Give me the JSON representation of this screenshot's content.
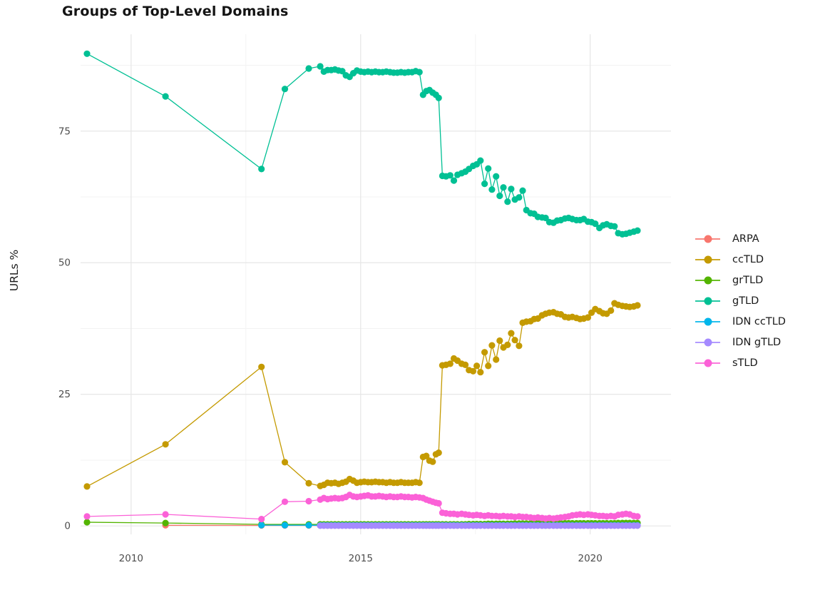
{
  "page": {
    "background": "#ffffff"
  },
  "chart_data": {
    "type": "line",
    "title": "Groups of Top-Level Domains",
    "ylabel": "URLs %",
    "xlabel": "",
    "x_ticks": [
      2010,
      2015,
      2020
    ],
    "y_ticks": [
      0,
      25,
      50,
      75
    ],
    "xlim": [
      2008.9,
      2021.76
    ],
    "ylim": [
      -1.6,
      93.4
    ],
    "grid": true,
    "legend_position": "right",
    "colors": {
      "major_grid": "#e6e6e6",
      "minor_grid": "#f3f3f3",
      "tick_label": "#4d4d4d",
      "title_text": "#141414"
    },
    "x_dense": [
      2014.12,
      2014.2,
      2014.28,
      2014.36,
      2014.44,
      2014.52,
      2014.6,
      2014.68,
      2014.76,
      2014.84,
      2014.92,
      2015.0,
      2015.08,
      2015.16,
      2015.24,
      2015.32,
      2015.4,
      2015.48,
      2015.56,
      2015.64,
      2015.72,
      2015.8,
      2015.88,
      2015.96,
      2016.04,
      2016.12,
      2016.2,
      2016.28,
      2016.36,
      2016.43,
      2016.5,
      2016.57,
      2016.64,
      2016.7,
      2016.78,
      2016.86,
      2016.95,
      2017.03,
      2017.11,
      2017.2,
      2017.28,
      2017.36,
      2017.45,
      2017.53,
      2017.61,
      2017.7,
      2017.78,
      2017.86,
      2017.95,
      2018.03,
      2018.11,
      2018.2,
      2018.28,
      2018.36,
      2018.45,
      2018.53,
      2018.61,
      2018.7,
      2018.78,
      2018.86,
      2018.95,
      2019.03,
      2019.11,
      2019.2,
      2019.28,
      2019.36,
      2019.45,
      2019.53,
      2019.61,
      2019.7,
      2019.78,
      2019.86,
      2019.95,
      2020.03,
      2020.11,
      2020.2,
      2020.28,
      2020.36,
      2020.45,
      2020.53,
      2020.61,
      2020.7,
      2020.78,
      2020.86,
      2020.95,
      2021.03
    ],
    "series": [
      {
        "name": "ARPA",
        "color": "#F8766D",
        "head": [
          [
            2010.75,
            0.12
          ],
          [
            2012.84,
            0.1
          ],
          [
            2013.35,
            0.1
          ],
          [
            2013.87,
            0.1
          ]
        ],
        "dense_const": 0.08
      },
      {
        "name": "ccTLD",
        "color": "#C49A00",
        "head": [
          [
            2009.04,
            7.5
          ],
          [
            2010.75,
            15.5
          ],
          [
            2012.84,
            30.2
          ],
          [
            2013.35,
            12.1
          ],
          [
            2013.87,
            8.1
          ]
        ],
        "dense": [
          7.6,
          7.8,
          8.2,
          8.1,
          8.2,
          8.0,
          8.2,
          8.4,
          8.9,
          8.6,
          8.2,
          8.3,
          8.4,
          8.3,
          8.3,
          8.4,
          8.3,
          8.3,
          8.2,
          8.3,
          8.2,
          8.2,
          8.3,
          8.2,
          8.2,
          8.2,
          8.3,
          8.2,
          13.1,
          13.3,
          12.4,
          12.2,
          13.6,
          13.9,
          30.5,
          30.6,
          30.8,
          31.8,
          31.4,
          30.8,
          30.6,
          29.6,
          29.4,
          30.4,
          29.2,
          33.0,
          30.4,
          34.3,
          31.6,
          35.2,
          33.9,
          34.4,
          36.6,
          35.3,
          34.2,
          38.6,
          38.8,
          38.9,
          39.3,
          39.4,
          40.0,
          40.3,
          40.5,
          40.6,
          40.3,
          40.2,
          39.7,
          39.6,
          39.7,
          39.5,
          39.3,
          39.4,
          39.6,
          40.5,
          41.2,
          40.8,
          40.4,
          40.3,
          40.9,
          42.3,
          42.0,
          41.8,
          41.7,
          41.6,
          41.7,
          41.9
        ]
      },
      {
        "name": "grTLD",
        "color": "#53B400",
        "head": [
          [
            2009.04,
            0.7
          ],
          [
            2010.75,
            0.55
          ],
          [
            2012.84,
            0.3
          ],
          [
            2013.35,
            0.3
          ],
          [
            2013.87,
            0.3
          ]
        ],
        "dense": [
          0.3,
          0.3,
          0.3,
          0.3,
          0.3,
          0.3,
          0.3,
          0.3,
          0.3,
          0.3,
          0.3,
          0.3,
          0.3,
          0.3,
          0.3,
          0.3,
          0.3,
          0.3,
          0.3,
          0.3,
          0.3,
          0.3,
          0.3,
          0.3,
          0.3,
          0.3,
          0.3,
          0.3,
          0.3,
          0.3,
          0.3,
          0.3,
          0.3,
          0.3,
          0.3,
          0.3,
          0.3,
          0.3,
          0.3,
          0.3,
          0.3,
          0.35,
          0.35,
          0.35,
          0.35,
          0.35,
          0.4,
          0.4,
          0.4,
          0.4,
          0.4,
          0.4,
          0.4,
          0.45,
          0.45,
          0.45,
          0.45,
          0.45,
          0.45,
          0.5,
          0.5,
          0.5,
          0.5,
          0.5,
          0.5,
          0.5,
          0.5,
          0.5,
          0.5,
          0.5,
          0.5,
          0.5,
          0.5,
          0.5,
          0.5,
          0.5,
          0.5,
          0.5,
          0.5,
          0.5,
          0.55,
          0.55,
          0.55,
          0.55,
          0.55,
          0.55
        ]
      },
      {
        "name": "gTLD",
        "color": "#00C094",
        "head": [
          [
            2009.04,
            89.7
          ],
          [
            2010.75,
            81.6
          ],
          [
            2012.84,
            67.8
          ],
          [
            2013.35,
            83.0
          ],
          [
            2013.87,
            86.9
          ]
        ],
        "dense": [
          87.3,
          86.3,
          86.6,
          86.6,
          86.7,
          86.5,
          86.4,
          85.6,
          85.3,
          86.0,
          86.5,
          86.3,
          86.2,
          86.3,
          86.2,
          86.3,
          86.2,
          86.2,
          86.3,
          86.2,
          86.1,
          86.1,
          86.2,
          86.1,
          86.2,
          86.2,
          86.4,
          86.2,
          81.9,
          82.6,
          82.8,
          82.3,
          81.9,
          81.3,
          66.5,
          66.4,
          66.6,
          65.6,
          66.7,
          67.0,
          67.3,
          67.8,
          68.4,
          68.7,
          69.4,
          65.0,
          67.9,
          63.9,
          66.4,
          62.7,
          64.3,
          61.6,
          64.0,
          62.0,
          62.4,
          63.7,
          60.0,
          59.4,
          59.3,
          58.7,
          58.6,
          58.5,
          57.7,
          57.6,
          58.0,
          58.1,
          58.4,
          58.5,
          58.3,
          58.1,
          58.1,
          58.3,
          57.8,
          57.7,
          57.4,
          56.6,
          57.1,
          57.3,
          57.0,
          56.9,
          55.6,
          55.4,
          55.5,
          55.7,
          55.9,
          56.1
        ]
      },
      {
        "name": "IDN ccTLD",
        "color": "#00B6EB",
        "head": [
          [
            2012.84,
            0.15
          ],
          [
            2013.35,
            0.14
          ],
          [
            2013.87,
            0.13
          ]
        ],
        "dense_const": 0.12
      },
      {
        "name": "IDN gTLD",
        "color": "#A58AFF",
        "head": [],
        "dense_const": 0.05
      },
      {
        "name": "sTLD",
        "color": "#FB61D7",
        "head": [
          [
            2009.04,
            1.8
          ],
          [
            2010.75,
            2.2
          ],
          [
            2012.84,
            1.3
          ],
          [
            2013.35,
            4.6
          ],
          [
            2013.87,
            4.7
          ]
        ],
        "dense": [
          5.0,
          5.3,
          5.1,
          5.2,
          5.3,
          5.2,
          5.3,
          5.5,
          5.9,
          5.6,
          5.5,
          5.6,
          5.7,
          5.8,
          5.6,
          5.6,
          5.7,
          5.6,
          5.5,
          5.6,
          5.5,
          5.5,
          5.6,
          5.5,
          5.5,
          5.4,
          5.5,
          5.4,
          5.3,
          5.0,
          4.8,
          4.6,
          4.4,
          4.3,
          2.5,
          2.4,
          2.3,
          2.3,
          2.2,
          2.3,
          2.2,
          2.1,
          2.0,
          2.1,
          2.0,
          1.9,
          2.0,
          1.9,
          1.9,
          1.8,
          1.9,
          1.8,
          1.8,
          1.7,
          1.8,
          1.7,
          1.7,
          1.6,
          1.5,
          1.6,
          1.5,
          1.4,
          1.5,
          1.4,
          1.5,
          1.6,
          1.7,
          1.8,
          2.0,
          2.1,
          2.2,
          2.1,
          2.2,
          2.1,
          2.0,
          1.9,
          1.9,
          1.8,
          1.9,
          1.8,
          2.1,
          2.2,
          2.3,
          2.2,
          1.9,
          1.8
        ]
      }
    ]
  }
}
